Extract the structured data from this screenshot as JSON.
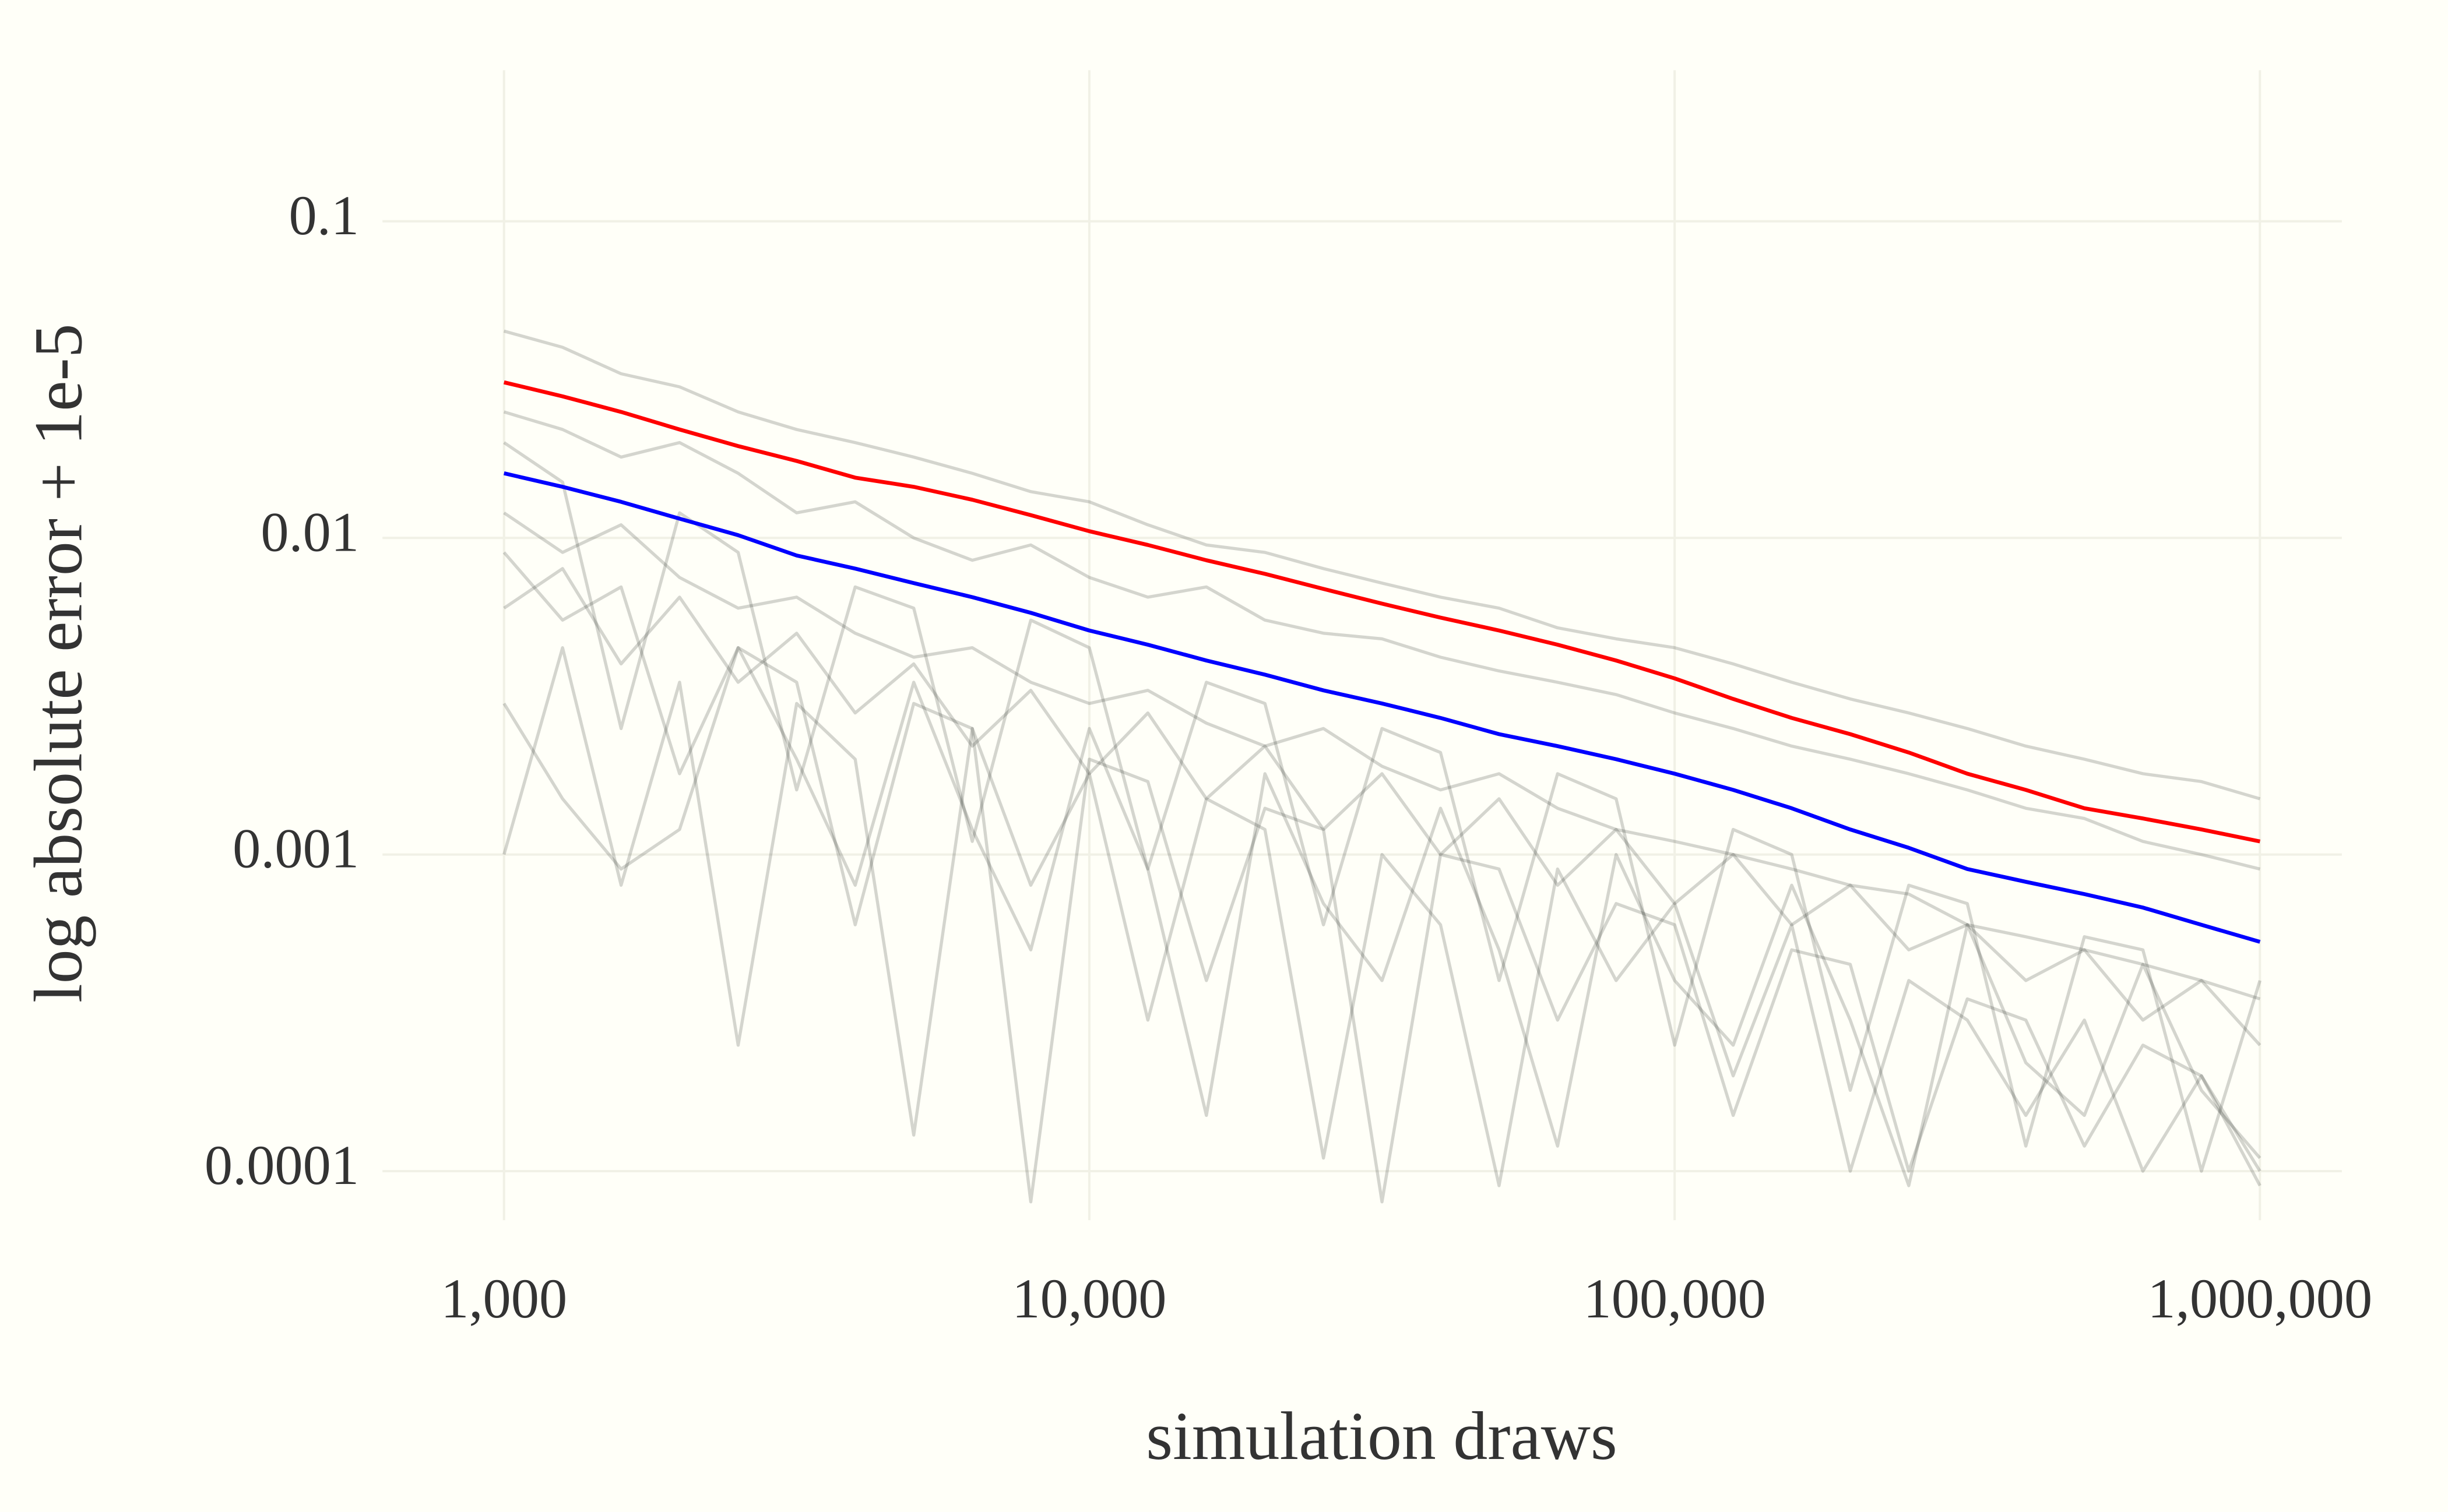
{
  "chart_data": {
    "type": "line",
    "xlabel": "simulation draws",
    "ylabel": "log absolute error + 1e-5",
    "xscale": "log",
    "yscale": "log",
    "grid": true,
    "xlim": [
      620,
      1380000
    ],
    "ylim": [
      7e-05,
      0.3
    ],
    "xticks": [
      {
        "value": 1000,
        "label": "1,000"
      },
      {
        "value": 10000,
        "label": "10,000"
      },
      {
        "value": 100000,
        "label": "100,000"
      },
      {
        "value": 1000000,
        "label": "1,000,000"
      }
    ],
    "yticks": [
      0.0001,
      0.001,
      0.01,
      0.1
    ],
    "x": [
      1000,
      1259,
      1585,
      1995,
      2512,
      3162,
      3981,
      5012,
      6310,
      7943,
      10000,
      12589,
      15849,
      19953,
      25119,
      31623,
      39811,
      50119,
      63096,
      79433,
      100000,
      125893,
      158489,
      199526,
      251189,
      316228,
      398107,
      501187,
      630957,
      794328,
      1000000
    ],
    "series": [
      {
        "color": "#2a2e2a",
        "opacity": 0.2,
        "values": [
          0.045,
          0.04,
          0.033,
          0.03,
          0.025,
          0.022,
          0.02,
          0.018,
          0.016,
          0.014,
          0.013,
          0.011,
          0.0095,
          0.009,
          0.008,
          0.0072,
          0.0065,
          0.006,
          0.0052,
          0.0048,
          0.0045,
          0.004,
          0.0035,
          0.0031,
          0.0028,
          0.0025,
          0.0022,
          0.002,
          0.0018,
          0.0017,
          0.0015
        ]
      },
      {
        "color": "#2a2e2a",
        "opacity": 0.2,
        "values": [
          0.001,
          0.0045,
          0.0008,
          0.0035,
          0.00025,
          0.003,
          0.002,
          0.00013,
          0.0025,
          0.0008,
          0.0018,
          0.0003,
          0.0015,
          0.0012,
          0.00011,
          0.001,
          0.0006,
          9e-05,
          0.0009,
          0.0004,
          0.0007,
          0.0002,
          0.0006,
          0.0001,
          0.0004,
          0.0003,
          0.00015,
          0.0003,
          0.0001,
          0.0002,
          9e-05
        ]
      },
      {
        "color": "#2a2e2a",
        "opacity": 0.2,
        "values": [
          0.012,
          0.009,
          0.011,
          0.0075,
          0.006,
          0.0065,
          0.005,
          0.0042,
          0.0045,
          0.0035,
          0.003,
          0.0033,
          0.0026,
          0.0022,
          0.0025,
          0.0019,
          0.0016,
          0.0018,
          0.0014,
          0.0012,
          0.0011,
          0.001,
          0.0009,
          0.0008,
          0.00075,
          0.0006,
          0.00055,
          0.0005,
          0.00045,
          0.0004,
          0.00035
        ]
      },
      {
        "color": "#2a2e2a",
        "opacity": 0.2,
        "values": [
          0.02,
          0.015,
          0.0025,
          0.012,
          0.009,
          0.0016,
          0.007,
          0.006,
          0.0011,
          0.0055,
          0.0045,
          0.0009,
          0.0035,
          0.003,
          0.0006,
          0.0025,
          0.0021,
          0.0004,
          0.0018,
          0.0015,
          0.00025,
          0.0012,
          0.001,
          0.00018,
          0.0008,
          0.0007,
          0.00012,
          0.00055,
          0.0005,
          0.0001,
          0.0004
        ]
      },
      {
        "color": "#2a2e2a",
        "opacity": 0.2,
        "values": [
          0.006,
          0.008,
          0.004,
          0.0065,
          0.0035,
          0.005,
          0.0028,
          0.004,
          0.0022,
          0.0033,
          0.0018,
          0.0028,
          0.0015,
          0.0022,
          0.0012,
          0.0018,
          0.001,
          0.0015,
          0.0008,
          0.0012,
          0.0007,
          0.001,
          0.0006,
          0.0008,
          0.0005,
          0.0006,
          0.0004,
          0.0005,
          0.0003,
          0.0004,
          0.00025
        ]
      },
      {
        "color": "#2a2e2a",
        "opacity": 0.2,
        "values": [
          0.003,
          0.0015,
          0.0009,
          0.0012,
          0.0045,
          0.002,
          0.0008,
          0.0035,
          0.0012,
          0.0005,
          0.0025,
          0.0009,
          0.00015,
          0.0018,
          0.0007,
          0.0004,
          0.0014,
          0.0005,
          0.00012,
          0.001,
          0.0004,
          0.00025,
          0.0008,
          0.0003,
          9e-05,
          0.0006,
          0.00022,
          0.00015,
          0.00045,
          0.00018,
          0.00011
        ]
      },
      {
        "color": "#2a2e2a",
        "opacity": 0.2,
        "values": [
          0.025,
          0.022,
          0.018,
          0.02,
          0.016,
          0.012,
          0.013,
          0.01,
          0.0085,
          0.0095,
          0.0075,
          0.0065,
          0.007,
          0.0055,
          0.005,
          0.0048,
          0.0042,
          0.0038,
          0.0035,
          0.0032,
          0.0028,
          0.0025,
          0.0022,
          0.002,
          0.0018,
          0.0016,
          0.0014,
          0.0013,
          0.0011,
          0.001,
          0.0009
        ]
      },
      {
        "color": "#2a2e2a",
        "opacity": 0.2,
        "values": [
          0.009,
          0.0055,
          0.007,
          0.0018,
          0.0045,
          0.0035,
          0.0006,
          0.003,
          0.0025,
          8e-05,
          0.002,
          0.0017,
          0.0004,
          0.0014,
          0.0012,
          8e-05,
          0.001,
          0.0009,
          0.0003,
          0.0007,
          0.0006,
          0.00015,
          0.0005,
          0.00045,
          0.0001,
          0.00035,
          0.0003,
          0.00012,
          0.00025,
          0.0002,
          0.0001
        ]
      },
      {
        "color": "#ff0000",
        "opacity": 1,
        "values": [
          0.031,
          0.028,
          0.025,
          0.022,
          0.0195,
          0.0175,
          0.0155,
          0.0145,
          0.0132,
          0.0118,
          0.0105,
          0.0095,
          0.0085,
          0.0077,
          0.0069,
          0.0062,
          0.0056,
          0.0051,
          0.0046,
          0.0041,
          0.0036,
          0.0031,
          0.0027,
          0.0024,
          0.0021,
          0.0018,
          0.0016,
          0.0014,
          0.0013,
          0.0012,
          0.0011
        ]
      },
      {
        "color": "#0000ff",
        "opacity": 1,
        "values": [
          0.016,
          0.0145,
          0.013,
          0.0115,
          0.0102,
          0.0088,
          0.008,
          0.0072,
          0.0065,
          0.0058,
          0.0051,
          0.0046,
          0.0041,
          0.0037,
          0.0033,
          0.003,
          0.0027,
          0.0024,
          0.0022,
          0.002,
          0.0018,
          0.0016,
          0.0014,
          0.0012,
          0.00105,
          0.0009,
          0.00082,
          0.00075,
          0.00068,
          0.0006,
          0.00053
        ]
      }
    ]
  }
}
